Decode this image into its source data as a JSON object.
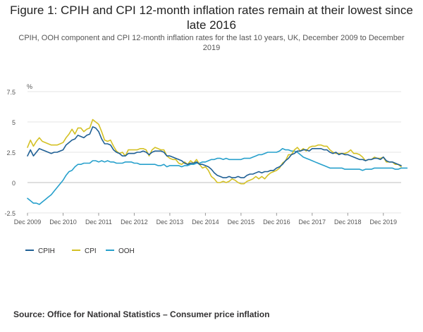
{
  "title": "Figure 1: CPIH and CPI 12-month inflation rates remain at their lowest since late 2016",
  "subtitle": "CPIH, OOH component and CPI 12-month inflation rates for the last 10 years, UK, December 2009 to December 2019",
  "source": "Source: Office for National Statistics – Consumer price inflation",
  "chart_data": {
    "type": "line",
    "title": "Figure 1: CPIH and CPI 12-month inflation rates remain at their lowest since late 2016",
    "ylabel": "%",
    "ylim": [
      -2.5,
      7.5
    ],
    "yticks": [
      "7.5",
      "5",
      "2.5",
      "0",
      "-2.5"
    ],
    "ytick_values": [
      7.5,
      5,
      2.5,
      0,
      -2.5
    ],
    "xticks": [
      "Dec 2009",
      "Dec 2010",
      "Dec 2011",
      "Dec 2012",
      "Dec 2013",
      "Dec 2014",
      "Dec 2015",
      "Dec 2016",
      "Dec 2017",
      "Dec 2018",
      "Dec 2019"
    ],
    "x_start": "Dec 2009",
    "x_end": "Dec 2019",
    "frequency": "monthly",
    "grid": true,
    "legend_position": "bottom-left",
    "series": [
      {
        "name": "CPIH",
        "color": "#206095",
        "values": [
          2.2,
          2.7,
          2.2,
          2.5,
          2.8,
          2.7,
          2.6,
          2.5,
          2.4,
          2.5,
          2.5,
          2.6,
          2.7,
          3.1,
          3.3,
          3.5,
          3.6,
          3.9,
          3.8,
          3.7,
          3.9,
          4.0,
          4.6,
          4.5,
          4.2,
          3.6,
          3.2,
          3.2,
          3.1,
          2.7,
          2.5,
          2.4,
          2.2,
          2.2,
          2.4,
          2.4,
          2.4,
          2.5,
          2.5,
          2.6,
          2.5,
          2.3,
          2.5,
          2.6,
          2.6,
          2.6,
          2.5,
          2.2,
          2.2,
          2.1,
          2.0,
          1.9,
          1.8,
          1.6,
          1.5,
          1.6,
          1.6,
          1.7,
          1.5,
          1.5,
          1.4,
          1.3,
          1.1,
          0.8,
          0.6,
          0.5,
          0.4,
          0.4,
          0.5,
          0.4,
          0.4,
          0.5,
          0.4,
          0.4,
          0.6,
          0.7,
          0.7,
          0.8,
          0.9,
          0.8,
          0.9,
          0.9,
          1.0,
          1.0,
          1.2,
          1.3,
          1.5,
          1.8,
          2.0,
          2.3,
          2.4,
          2.6,
          2.6,
          2.7,
          2.7,
          2.6,
          2.8,
          2.8,
          2.8,
          2.8,
          2.7,
          2.7,
          2.5,
          2.4,
          2.5,
          2.3,
          2.4,
          2.3,
          2.3,
          2.2,
          2.1,
          2.0,
          1.9,
          1.9,
          1.8,
          1.9,
          1.9,
          2.0,
          2.0,
          1.9,
          2.1,
          1.8,
          1.7,
          1.7,
          1.6,
          1.5,
          1.4
        ]
      },
      {
        "name": "CPI",
        "color": "#d4c125",
        "values": [
          2.9,
          3.5,
          3.0,
          3.4,
          3.7,
          3.4,
          3.3,
          3.2,
          3.1,
          3.1,
          3.1,
          3.2,
          3.3,
          3.7,
          4.0,
          4.4,
          4.0,
          4.5,
          4.5,
          4.2,
          4.4,
          4.5,
          5.2,
          5.0,
          4.8,
          4.2,
          3.5,
          3.4,
          3.5,
          3.0,
          2.6,
          2.4,
          2.5,
          2.2,
          2.7,
          2.7,
          2.7,
          2.7,
          2.8,
          2.8,
          2.7,
          2.2,
          2.7,
          2.9,
          2.8,
          2.7,
          2.7,
          2.2,
          2.0,
          1.9,
          1.9,
          1.6,
          1.5,
          1.7,
          1.5,
          1.8,
          1.6,
          1.9,
          1.5,
          1.2,
          1.3,
          1.0,
          0.5,
          0.3,
          0.0,
          0.0,
          0.1,
          0.0,
          0.1,
          0.3,
          0.2,
          0.0,
          -0.1,
          -0.1,
          0.1,
          0.2,
          0.3,
          0.5,
          0.3,
          0.5,
          0.3,
          0.6,
          0.8,
          0.9,
          1.0,
          1.2,
          1.6,
          1.8,
          2.3,
          2.3,
          2.7,
          2.9,
          2.6,
          2.8,
          2.6,
          2.9,
          3.0,
          3.0,
          3.1,
          3.1,
          3.0,
          3.0,
          2.7,
          2.5,
          2.4,
          2.4,
          2.4,
          2.4,
          2.5,
          2.7,
          2.4,
          2.4,
          2.3,
          2.1,
          1.8,
          1.9,
          1.9,
          2.1,
          2.0,
          2.0,
          2.1,
          1.7,
          1.7,
          1.7,
          1.5,
          1.5,
          1.3
        ]
      },
      {
        "name": "OOH",
        "color": "#27a0cc",
        "values": [
          -1.3,
          -1.5,
          -1.7,
          -1.7,
          -1.8,
          -1.6,
          -1.4,
          -1.2,
          -1.0,
          -0.7,
          -0.4,
          -0.1,
          0.2,
          0.6,
          0.9,
          1.0,
          1.3,
          1.5,
          1.5,
          1.6,
          1.6,
          1.6,
          1.8,
          1.8,
          1.7,
          1.8,
          1.7,
          1.8,
          1.7,
          1.7,
          1.6,
          1.6,
          1.6,
          1.7,
          1.7,
          1.7,
          1.6,
          1.6,
          1.5,
          1.5,
          1.5,
          1.5,
          1.5,
          1.5,
          1.4,
          1.4,
          1.5,
          1.3,
          1.4,
          1.4,
          1.4,
          1.4,
          1.3,
          1.4,
          1.4,
          1.5,
          1.5,
          1.6,
          1.6,
          1.7,
          1.7,
          1.8,
          1.9,
          1.9,
          2.0,
          2.0,
          1.9,
          2.0,
          1.9,
          1.9,
          1.9,
          1.9,
          1.9,
          2.0,
          2.0,
          2.0,
          2.1,
          2.2,
          2.3,
          2.3,
          2.4,
          2.5,
          2.5,
          2.5,
          2.5,
          2.6,
          2.8,
          2.7,
          2.7,
          2.6,
          2.6,
          2.5,
          2.3,
          2.1,
          2.0,
          1.9,
          1.8,
          1.7,
          1.6,
          1.5,
          1.4,
          1.3,
          1.2,
          1.2,
          1.2,
          1.2,
          1.2,
          1.1,
          1.1,
          1.1,
          1.1,
          1.1,
          1.1,
          1.0,
          1.1,
          1.1,
          1.1,
          1.2,
          1.2,
          1.2,
          1.2,
          1.2,
          1.2,
          1.2,
          1.1,
          1.1,
          1.2,
          1.2,
          1.2
        ]
      }
    ]
  }
}
